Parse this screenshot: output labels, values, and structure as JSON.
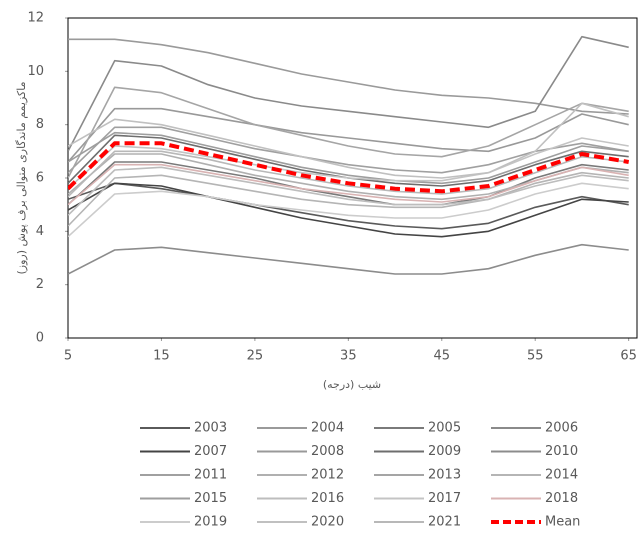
{
  "chart_data": {
    "type": "line",
    "y_label": "ماکزیمم ماندگاری متوالی برف پوش (روز)",
    "x_label": "شیب (درجه)",
    "x": [
      5,
      10,
      15,
      20,
      25,
      30,
      35,
      40,
      45,
      50,
      55,
      60,
      65
    ],
    "xlim": [
      5,
      66
    ],
    "xticks": [
      5,
      15,
      25,
      35,
      45,
      55,
      65
    ],
    "ylim": [
      0,
      12
    ],
    "yticks": [
      0,
      2,
      4,
      6,
      8,
      10,
      12
    ],
    "series": [
      {
        "name": "2003",
        "color": "#5a5a5a",
        "values": [
          5.2,
          5.8,
          5.6,
          5.3,
          5.0,
          4.7,
          4.4,
          4.2,
          4.1,
          4.3,
          4.9,
          5.3,
          5.0
        ]
      },
      {
        "name": "2004",
        "color": "#9a9a9a",
        "values": [
          11.2,
          11.2,
          11.0,
          10.7,
          10.3,
          9.9,
          9.6,
          9.3,
          9.1,
          9.0,
          8.8,
          8.5,
          8.4
        ]
      },
      {
        "name": "2005",
        "color": "#7a7a7a",
        "values": [
          5.0,
          6.6,
          6.6,
          6.3,
          6.0,
          5.6,
          5.3,
          5.0,
          5.0,
          5.3,
          6.0,
          6.5,
          6.3
        ]
      },
      {
        "name": "2006",
        "color": "#8a8a8a",
        "values": [
          7.0,
          10.4,
          10.2,
          9.5,
          9.0,
          8.7,
          8.5,
          8.3,
          8.1,
          7.9,
          8.5,
          11.3,
          10.9
        ]
      },
      {
        "name": "2007",
        "color": "#444444",
        "values": [
          4.8,
          5.8,
          5.7,
          5.3,
          4.9,
          4.5,
          4.2,
          3.9,
          3.8,
          4.0,
          4.6,
          5.2,
          5.1
        ]
      },
      {
        "name": "2008",
        "color": "#999999",
        "values": [
          6.6,
          8.6,
          8.6,
          8.3,
          8.0,
          7.7,
          7.5,
          7.3,
          7.1,
          7.0,
          7.5,
          8.4,
          8.0
        ]
      },
      {
        "name": "2009",
        "color": "#6e6e6e",
        "values": [
          5.8,
          7.6,
          7.5,
          7.1,
          6.7,
          6.3,
          6.0,
          5.8,
          5.7,
          5.9,
          6.5,
          7.0,
          6.8
        ]
      },
      {
        "name": "2010",
        "color": "#8c8c8c",
        "values": [
          2.4,
          3.3,
          3.4,
          3.2,
          3.0,
          2.8,
          2.6,
          2.4,
          2.4,
          2.6,
          3.1,
          3.5,
          3.3
        ]
      },
      {
        "name": "2011",
        "color": "#a0a0a0",
        "values": [
          6.2,
          7.9,
          7.9,
          7.5,
          7.1,
          6.8,
          6.5,
          6.3,
          6.2,
          6.5,
          7.0,
          7.3,
          7.0
        ]
      },
      {
        "name": "2012",
        "color": "#b0b0b0",
        "values": [
          5.4,
          6.9,
          6.9,
          6.5,
          6.1,
          5.8,
          5.5,
          5.3,
          5.2,
          5.4,
          5.9,
          6.4,
          6.2
        ]
      },
      {
        "name": "2013",
        "color": "#a5a5a5",
        "values": [
          6.0,
          9.4,
          9.2,
          8.6,
          8.0,
          7.6,
          7.2,
          6.9,
          6.8,
          7.2,
          8.0,
          8.8,
          8.5
        ]
      },
      {
        "name": "2014",
        "color": "#b5b5b5",
        "values": [
          4.2,
          6.0,
          6.1,
          5.8,
          5.5,
          5.2,
          5.0,
          4.9,
          4.9,
          5.2,
          5.8,
          6.2,
          6.0
        ]
      },
      {
        "name": "2015",
        "color": "#9e9e9e",
        "values": [
          6.6,
          7.7,
          7.6,
          7.2,
          6.8,
          6.4,
          6.1,
          5.9,
          5.8,
          6.0,
          6.6,
          7.2,
          7.0
        ]
      },
      {
        "name": "2016",
        "color": "#bdbdbd",
        "values": [
          4.6,
          6.3,
          6.4,
          6.1,
          5.8,
          5.5,
          5.2,
          5.0,
          5.0,
          5.2,
          5.7,
          6.1,
          5.9
        ]
      },
      {
        "name": "2017",
        "color": "#c4c4c4",
        "values": [
          5.6,
          7.2,
          7.1,
          6.8,
          6.5,
          6.2,
          6.0,
          5.9,
          5.9,
          6.2,
          6.9,
          7.5,
          7.2
        ]
      },
      {
        "name": "2018",
        "color": "#d9b3b3",
        "values": [
          5.0,
          6.5,
          6.5,
          6.2,
          5.9,
          5.6,
          5.4,
          5.2,
          5.1,
          5.3,
          5.9,
          6.4,
          6.1
        ]
      },
      {
        "name": "2019",
        "color": "#cccccc",
        "values": [
          3.8,
          5.4,
          5.5,
          5.3,
          5.0,
          4.8,
          4.6,
          4.5,
          4.5,
          4.8,
          5.4,
          5.8,
          5.6
        ]
      },
      {
        "name": "2020",
        "color": "#c0c0c0",
        "values": [
          7.2,
          8.2,
          8.0,
          7.6,
          7.2,
          6.8,
          6.4,
          6.1,
          6.0,
          6.2,
          7.0,
          8.8,
          8.3
        ]
      },
      {
        "name": "2021",
        "color": "#b8b8b8",
        "values": [
          5.3,
          7.0,
          7.0,
          6.7,
          6.3,
          6.0,
          5.7,
          5.5,
          5.4,
          5.6,
          6.2,
          6.8,
          6.6
        ]
      },
      {
        "name": "Mean",
        "color": "#ff0000",
        "dashed": true,
        "values": [
          5.6,
          7.3,
          7.3,
          6.9,
          6.5,
          6.1,
          5.8,
          5.6,
          5.5,
          5.7,
          6.3,
          6.9,
          6.6
        ]
      }
    ]
  }
}
